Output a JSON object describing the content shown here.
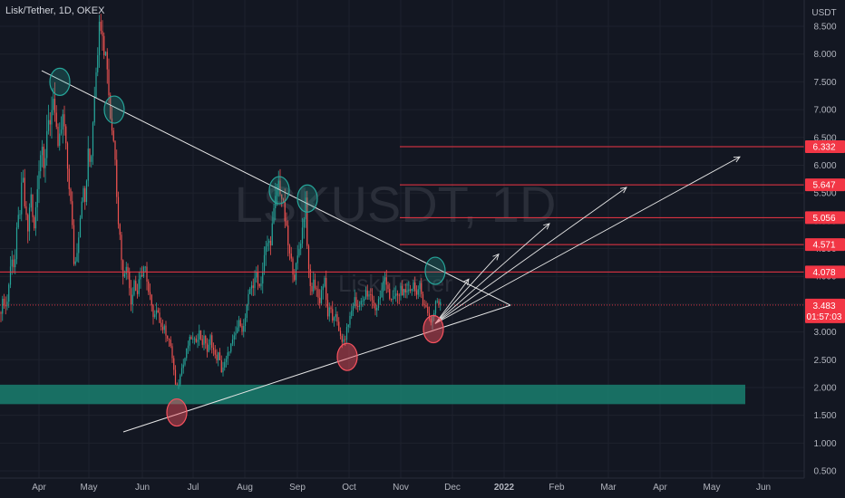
{
  "header": {
    "title": "Lisk/Tether, 1D, OKEX"
  },
  "watermark": {
    "symbol": "LSKUSDT, 1D",
    "name": "Lisk/Tether"
  },
  "colors": {
    "background": "#131722",
    "grid": "#1e222d",
    "text": "#b2b5be",
    "up": "#26a69a",
    "down": "#ef5350",
    "line": "#e6e6e6",
    "level": "#f23645",
    "zone": "#1a7f6e",
    "circle_green": "#26a69a",
    "circle_red": "#f7525f"
  },
  "chart_data": {
    "type": "candlestick",
    "symbol": "Lisk/Tether",
    "interval": "1D",
    "exchange": "OKEX",
    "y_axis": {
      "unit": "USDT",
      "ticks": [
        "0.500",
        "1.000",
        "1.500",
        "2.000",
        "2.500",
        "3.000",
        "3.500",
        "4.000",
        "4.500",
        "5.000",
        "5.500",
        "6.000",
        "6.500",
        "7.000",
        "7.500",
        "8.000",
        "8.500"
      ],
      "range": [
        0.4,
        8.9
      ]
    },
    "x_axis": {
      "ticks": [
        "Apr",
        "May",
        "Jun",
        "Jul",
        "Aug",
        "Sep",
        "Oct",
        "Nov",
        "Dec",
        "2022",
        "Feb",
        "Mar",
        "Apr",
        "May",
        "Jun"
      ]
    },
    "last_price": {
      "value": "3.483",
      "countdown": "01:57:03"
    },
    "price_levels": [
      "4.078",
      "4.571",
      "5.056",
      "5.647",
      "6.332"
    ],
    "support_zone": [
      1.7,
      2.05
    ],
    "price_path": [
      [
        0,
        3.35
      ],
      [
        4,
        3.6
      ],
      [
        7,
        3.4
      ],
      [
        10,
        3.9
      ],
      [
        13,
        4.4
      ],
      [
        16,
        4.1
      ],
      [
        19,
        4.9
      ],
      [
        22,
        5.2
      ],
      [
        25,
        5.8
      ],
      [
        28,
        5.1
      ],
      [
        31,
        4.8
      ],
      [
        34,
        5.6
      ],
      [
        37,
        4.7
      ],
      [
        40,
        5.3
      ],
      [
        43,
        6.0
      ],
      [
        46,
        6.4
      ],
      [
        49,
        6.0
      ],
      [
        52,
        6.7
      ],
      [
        55,
        6.6
      ],
      [
        58,
        7.3
      ],
      [
        61,
        7.0
      ],
      [
        64,
        6.2
      ],
      [
        67,
        6.6
      ],
      [
        70,
        6.9
      ],
      [
        73,
        6.2
      ],
      [
        76,
        5.7
      ],
      [
        79,
        5.1
      ],
      [
        82,
        4.1
      ],
      [
        85,
        4.5
      ],
      [
        88,
        5.0
      ],
      [
        91,
        5.6
      ],
      [
        94,
        5.3
      ],
      [
        97,
        6.2
      ],
      [
        100,
        6.0
      ],
      [
        103,
        7.0
      ],
      [
        106,
        7.8
      ],
      [
        109,
        8.4
      ],
      [
        112,
        8.7
      ],
      [
        115,
        8.1
      ],
      [
        118,
        7.9
      ],
      [
        121,
        7.0
      ],
      [
        124,
        6.6
      ],
      [
        127,
        6.2
      ],
      [
        130,
        5.1
      ],
      [
        133,
        4.6
      ],
      [
        136,
        3.9
      ],
      [
        139,
        4.3
      ],
      [
        142,
        3.9
      ],
      [
        145,
        3.5
      ],
      [
        148,
        4.0
      ],
      [
        151,
        3.6
      ],
      [
        154,
        4.1
      ],
      [
        157,
        3.9
      ],
      [
        160,
        4.3
      ],
      [
        163,
        3.7
      ],
      [
        166,
        3.6
      ],
      [
        169,
        3.2
      ],
      [
        172,
        3.5
      ],
      [
        175,
        3.3
      ],
      [
        178,
        3.0
      ],
      [
        181,
        3.2
      ],
      [
        184,
        2.8
      ],
      [
        187,
        2.9
      ],
      [
        190,
        2.5
      ],
      [
        193,
        2.1
      ],
      [
        196,
        2.0
      ],
      [
        199,
        2.3
      ],
      [
        202,
        2.4
      ],
      [
        205,
        2.6
      ],
      [
        208,
        2.8
      ],
      [
        211,
        2.9
      ],
      [
        214,
        2.8
      ],
      [
        217,
        2.9
      ],
      [
        220,
        3.0
      ],
      [
        223,
        2.8
      ],
      [
        226,
        2.9
      ],
      [
        229,
        2.6
      ],
      [
        232,
        2.9
      ],
      [
        235,
        2.7
      ],
      [
        238,
        2.5
      ],
      [
        241,
        2.6
      ],
      [
        244,
        2.3
      ],
      [
        247,
        2.4
      ],
      [
        250,
        2.5
      ],
      [
        253,
        2.7
      ],
      [
        256,
        2.8
      ],
      [
        259,
        2.9
      ],
      [
        262,
        3.1
      ],
      [
        265,
        3.2
      ],
      [
        268,
        3.0
      ],
      [
        271,
        3.3
      ],
      [
        274,
        3.6
      ],
      [
        277,
        3.9
      ],
      [
        280,
        3.8
      ],
      [
        283,
        4.1
      ],
      [
        286,
        3.8
      ],
      [
        289,
        4.0
      ],
      [
        292,
        4.4
      ],
      [
        295,
        4.6
      ],
      [
        298,
        4.6
      ],
      [
        301,
        5.0
      ],
      [
        304,
        5.4
      ],
      [
        307,
        5.7
      ],
      [
        310,
        5.5
      ],
      [
        313,
        5.2
      ],
      [
        316,
        4.8
      ],
      [
        319,
        4.4
      ],
      [
        322,
        4.2
      ],
      [
        325,
        4.0
      ],
      [
        328,
        4.3
      ],
      [
        331,
        4.6
      ],
      [
        334,
        4.9
      ],
      [
        337,
        5.4
      ],
      [
        340,
        4.1
      ],
      [
        343,
        3.7
      ],
      [
        346,
        3.9
      ],
      [
        349,
        3.8
      ],
      [
        352,
        3.5
      ],
      [
        355,
        3.8
      ],
      [
        358,
        3.9
      ],
      [
        361,
        3.3
      ],
      [
        364,
        3.4
      ],
      [
        367,
        3.2
      ],
      [
        370,
        3.4
      ],
      [
        373,
        3.0
      ],
      [
        376,
        2.9
      ],
      [
        379,
        2.8
      ],
      [
        382,
        3.0
      ],
      [
        385,
        3.2
      ],
      [
        388,
        3.4
      ],
      [
        391,
        3.6
      ],
      [
        394,
        3.4
      ],
      [
        397,
        3.6
      ],
      [
        400,
        3.5
      ],
      [
        403,
        3.7
      ],
      [
        406,
        3.6
      ],
      [
        409,
        3.7
      ],
      [
        412,
        3.5
      ],
      [
        415,
        3.4
      ],
      [
        418,
        3.6
      ],
      [
        421,
        3.7
      ],
      [
        424,
        4.0
      ],
      [
        427,
        3.9
      ],
      [
        430,
        3.6
      ],
      [
        433,
        3.5
      ],
      [
        436,
        3.7
      ],
      [
        439,
        3.6
      ],
      [
        442,
        3.8
      ],
      [
        445,
        3.7
      ],
      [
        448,
        3.6
      ],
      [
        451,
        3.8
      ],
      [
        454,
        3.8
      ],
      [
        457,
        3.9
      ],
      [
        460,
        3.6
      ],
      [
        463,
        3.8
      ],
      [
        466,
        3.6
      ],
      [
        469,
        3.5
      ],
      [
        472,
        3.3
      ],
      [
        475,
        3.2
      ],
      [
        478,
        3.3
      ],
      [
        481,
        3.6
      ],
      [
        484,
        3.5
      ],
      [
        486,
        3.48
      ]
    ]
  },
  "drawings": {
    "upper_trendline": {
      "from": [
        46,
        7.7
      ],
      "to": [
        563,
        3.48
      ]
    },
    "lower_trendline": {
      "from": [
        136,
        1.2
      ],
      "to": [
        563,
        3.48
      ]
    },
    "arrows": [
      {
        "to": [
          517,
          3.95
        ]
      },
      {
        "to": [
          550,
          4.4
        ]
      },
      {
        "to": [
          606,
          4.95
        ]
      },
      {
        "to": [
          691,
          5.6
        ]
      },
      {
        "to": [
          816,
          6.15
        ]
      }
    ],
    "circles": [
      {
        "x": 66,
        "y": 7.5,
        "kind": "high"
      },
      {
        "x": 126,
        "y": 7.0,
        "kind": "high"
      },
      {
        "x": 308,
        "y": 5.55,
        "kind": "high"
      },
      {
        "x": 339,
        "y": 5.4,
        "kind": "high"
      },
      {
        "x": 480,
        "y": 4.1,
        "kind": "high"
      },
      {
        "x": 195,
        "y": 1.55,
        "kind": "low"
      },
      {
        "x": 383,
        "y": 2.55,
        "kind": "low"
      },
      {
        "x": 478,
        "y": 3.05,
        "kind": "low"
      }
    ]
  }
}
